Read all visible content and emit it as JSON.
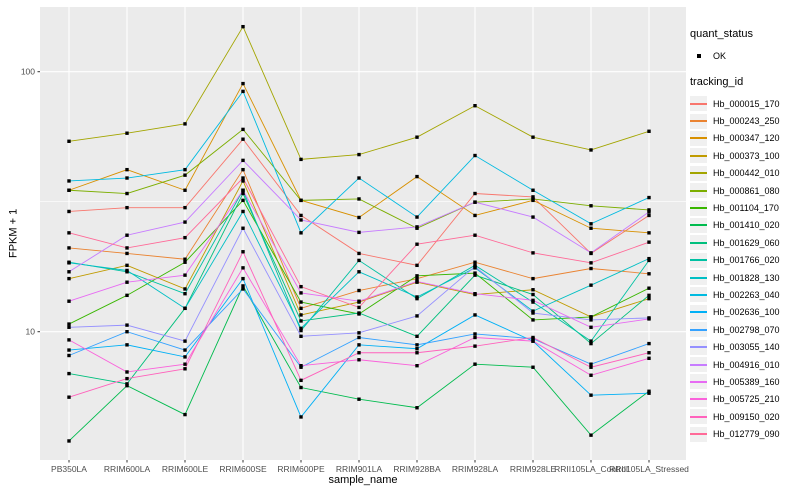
{
  "figure": {
    "background": "#FFFFFF",
    "panel_background": "#EBEBEB",
    "grid_color": "#FFFFFF",
    "tick_color": "#333333",
    "axis_text_color": "#4D4D4D"
  },
  "legend": {
    "quant_status_title": "quant_status",
    "quant_status_value": "OK",
    "tracking_id_title": "tracking_id",
    "key_background": "#F0F0F0",
    "point_color": "#000000"
  },
  "chart_data": {
    "type": "line",
    "title": "",
    "xlabel": "sample_name",
    "ylabel": "FPKM + 1",
    "y_scale": "log10",
    "y_ticks": [
      100,
      10
    ],
    "y_tick_labels": [
      "100",
      "10"
    ],
    "y_minor_ticks": [
      31.62
    ],
    "ylim": [
      3.3,
      178
    ],
    "grid": true,
    "legend_position": "right",
    "point_shape": "black-square",
    "categories": [
      "PB350LA",
      "RRIM600LA",
      "RRIM600LE",
      "RRIM600SE",
      "RRIM600PE",
      "RRIM901LA",
      "RRIM928BA",
      "RRIM928LA",
      "RRIM928LE",
      "RRII105LA_Control",
      "RRII105LA_Stressed"
    ],
    "series": [
      {
        "name": "Hb_000015_170",
        "color": "#F8766D",
        "values": [
          29,
          30,
          30,
          55,
          28,
          20,
          18,
          34,
          33,
          20,
          28
        ]
      },
      {
        "name": "Hb_000243_250",
        "color": "#EA8331",
        "values": [
          21,
          20,
          19,
          42,
          12.3,
          14.4,
          16,
          18.5,
          16,
          17.5,
          16.7
        ]
      },
      {
        "name": "Hb_000347_120",
        "color": "#D89000",
        "values": [
          35,
          42,
          35,
          90,
          32,
          27.5,
          39.5,
          28,
          32,
          25,
          24
        ]
      },
      {
        "name": "Hb_000373_100",
        "color": "#C09B00",
        "values": [
          16,
          18,
          14.6,
          38,
          11.6,
          13,
          15.5,
          13.9,
          14.5,
          11.4,
          13.4
        ]
      },
      {
        "name": "Hb_000442_010",
        "color": "#A3A500",
        "values": [
          54,
          58,
          63,
          149,
          46,
          48,
          56,
          74,
          56,
          50,
          59
        ]
      },
      {
        "name": "Hb_000861_080",
        "color": "#7CAE00",
        "values": [
          35,
          34,
          40,
          60,
          32,
          32.4,
          25,
          31.5,
          32.4,
          30.5,
          29.4
        ]
      },
      {
        "name": "Hb_001104_170",
        "color": "#39B600",
        "values": [
          10.7,
          13.8,
          18.5,
          32,
          13,
          11.7,
          16.4,
          16.8,
          11.1,
          11.4,
          14.7
        ]
      },
      {
        "name": "Hb_001410_020",
        "color": "#00BB4E",
        "values": [
          3.8,
          6.2,
          4.8,
          15,
          6.1,
          5.5,
          5.1,
          7.5,
          7.3,
          4,
          5.9
        ]
      },
      {
        "name": "Hb_001629_060",
        "color": "#00BF7D",
        "values": [
          6.9,
          6.3,
          12.3,
          34,
          11,
          11.8,
          9.6,
          16.5,
          13.9,
          9,
          13.8
        ]
      },
      {
        "name": "Hb_001766_020",
        "color": "#00C1A3",
        "values": [
          18.5,
          17,
          14,
          35,
          10.1,
          18.8,
          13.4,
          18,
          13,
          9.2,
          18.8
        ]
      },
      {
        "name": "Hb_001828_130",
        "color": "#00BFC4",
        "values": [
          18.4,
          17.2,
          12.3,
          29,
          10.3,
          17,
          13.6,
          17.6,
          12,
          15.1,
          19.1
        ]
      },
      {
        "name": "Hb_002263_040",
        "color": "#00BAE0",
        "values": [
          38,
          39,
          42,
          84,
          24,
          39,
          27.6,
          47.6,
          35,
          26,
          32.8
        ]
      },
      {
        "name": "Hb_002636_100",
        "color": "#00B0F6",
        "values": [
          8.5,
          8.9,
          8,
          16,
          4.7,
          8.9,
          8.6,
          11.6,
          9.2,
          5.7,
          5.8
        ]
      },
      {
        "name": "Hb_002798_070",
        "color": "#35A2FF",
        "values": [
          8.1,
          10,
          8.5,
          14.6,
          7.3,
          9.5,
          8.9,
          9.8,
          9.4,
          7.5,
          9
        ]
      },
      {
        "name": "Hb_003055_140",
        "color": "#9590FF",
        "values": [
          10.4,
          10.6,
          9.2,
          25,
          9.6,
          9.9,
          11.5,
          17.8,
          11.8,
          11.1,
          11.3
        ]
      },
      {
        "name": "Hb_004916_010",
        "color": "#C77CFF",
        "values": [
          17,
          23.5,
          26.4,
          45.6,
          26.9,
          24.1,
          25.3,
          31.5,
          27.6,
          20.1,
          28.9
        ]
      },
      {
        "name": "Hb_005389_160",
        "color": "#E76BF3",
        "values": [
          13.1,
          15.5,
          16.5,
          35,
          14.1,
          13.1,
          15.6,
          14,
          13.2,
          10.4,
          11.2
        ]
      },
      {
        "name": "Hb_005725_210",
        "color": "#FA62DB",
        "values": [
          9.3,
          7,
          7.5,
          17.6,
          7.4,
          7.8,
          7.4,
          9.5,
          9.2,
          6.8,
          7.9
        ]
      },
      {
        "name": "Hb_009150_020",
        "color": "#FF62BC",
        "values": [
          5.6,
          6.6,
          7.2,
          20.3,
          6.5,
          8.3,
          8.3,
          8.8,
          9.5,
          7.3,
          8.3
        ]
      },
      {
        "name": "Hb_012779_090",
        "color": "#FF6A98",
        "values": [
          24,
          21,
          23,
          39,
          14.9,
          12.4,
          21.7,
          23.5,
          20.1,
          18.4,
          22.1
        ]
      }
    ]
  }
}
